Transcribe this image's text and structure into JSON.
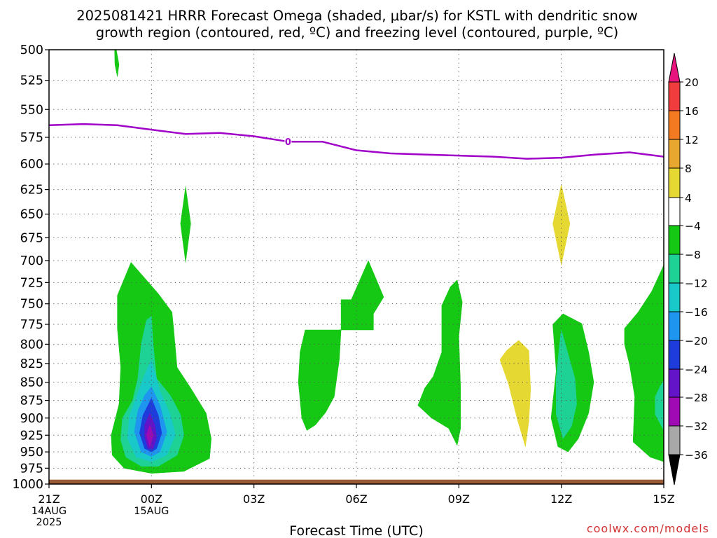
{
  "chart_data": {
    "type": "heatmap",
    "title_lines": [
      "2025081421 HRRR Forecast Omega (shaded, μbar/s) for KSTL with dendritic snow",
      "growth region (contoured, red, ºC) and freezing level (contoured, purple, ºC)"
    ],
    "xlabel": "Forecast Time (UTC)",
    "ylabel": "",
    "watermark": "coolwx.com/models",
    "x_ticks": [
      {
        "h": 0,
        "lines": [
          "21Z",
          "14AUG",
          "2025"
        ]
      },
      {
        "h": 3,
        "lines": [
          "00Z",
          "15AUG"
        ]
      },
      {
        "h": 6,
        "lines": [
          "03Z"
        ]
      },
      {
        "h": 9,
        "lines": [
          "06Z"
        ]
      },
      {
        "h": 12,
        "lines": [
          "09Z"
        ]
      },
      {
        "h": 15,
        "lines": [
          "12Z"
        ]
      },
      {
        "h": 18,
        "lines": [
          "15Z"
        ]
      }
    ],
    "y_ticks": [
      500,
      525,
      550,
      575,
      600,
      625,
      650,
      675,
      700,
      725,
      750,
      775,
      800,
      825,
      850,
      875,
      900,
      925,
      950,
      975,
      1000
    ],
    "x_range_hours": [
      0,
      18
    ],
    "y_range_hpa": [
      500,
      1000
    ],
    "y_scale": "log-pressure",
    "grid": "dotted",
    "colorbar": {
      "labels": [
        "20",
        "16",
        "12",
        "8",
        "4",
        "−4",
        "−8",
        "−12",
        "−16",
        "−20",
        "−24",
        "−28",
        "−32",
        "−36"
      ],
      "bands": [
        {
          "color": "#e8147e",
          "range": [
            20,
            null
          ]
        },
        {
          "color": "#f03c3c",
          "range": [
            16,
            20
          ]
        },
        {
          "color": "#f47a22",
          "range": [
            12,
            16
          ]
        },
        {
          "color": "#e8a830",
          "range": [
            8,
            12
          ]
        },
        {
          "color": "#e6d832",
          "range": [
            4,
            8
          ]
        },
        {
          "color": "#ffffff",
          "range": [
            -4,
            4
          ]
        },
        {
          "color": "#14c814",
          "range": [
            -8,
            -4
          ]
        },
        {
          "color": "#1ed296",
          "range": [
            -12,
            -8
          ]
        },
        {
          "color": "#19c8c8",
          "range": [
            -16,
            -12
          ]
        },
        {
          "color": "#1e96f0",
          "range": [
            -20,
            -16
          ]
        },
        {
          "color": "#1e3cdc",
          "range": [
            -24,
            -20
          ]
        },
        {
          "color": "#6414c8",
          "range": [
            -28,
            -24
          ]
        },
        {
          "color": "#a00ab4",
          "range": [
            -32,
            -28
          ]
        },
        {
          "color": "#a8a8a8",
          "range": [
            -36,
            -32
          ]
        },
        {
          "color": "#000000",
          "range": [
            null,
            -36
          ]
        }
      ]
    },
    "freezing_level": {
      "color": "#a000c8",
      "label": "0",
      "label_at": {
        "h": 7.0,
        "p": 579
      },
      "points": [
        {
          "h": 0,
          "p": 564
        },
        {
          "h": 1,
          "p": 563
        },
        {
          "h": 2,
          "p": 564
        },
        {
          "h": 3,
          "p": 568
        },
        {
          "h": 4,
          "p": 572
        },
        {
          "h": 5,
          "p": 571
        },
        {
          "h": 6,
          "p": 574
        },
        {
          "h": 7,
          "p": 579
        },
        {
          "h": 8,
          "p": 579
        },
        {
          "h": 9,
          "p": 587
        },
        {
          "h": 10,
          "p": 590
        },
        {
          "h": 11,
          "p": 591
        },
        {
          "h": 12,
          "p": 592
        },
        {
          "h": 13,
          "p": 593
        },
        {
          "h": 14,
          "p": 595
        },
        {
          "h": 15,
          "p": 594
        },
        {
          "h": 16,
          "p": 591
        },
        {
          "h": 17,
          "p": 589
        },
        {
          "h": 18,
          "p": 593
        }
      ]
    },
    "terrain": {
      "color": "#9a5a35",
      "top_hpa": 993
    },
    "regions": [
      {
        "name": "green",
        "color": "#14c814",
        "points": [
          [
            2.4,
            702
          ],
          [
            3.2,
            738
          ],
          [
            3.6,
            760
          ],
          [
            3.65,
            780
          ],
          [
            3.75,
            830
          ],
          [
            4.15,
            858
          ],
          [
            4.6,
            893
          ],
          [
            4.75,
            930
          ],
          [
            4.7,
            960
          ],
          [
            3.95,
            980
          ],
          [
            3.0,
            983
          ],
          [
            2.2,
            975
          ],
          [
            1.85,
            955
          ],
          [
            1.82,
            925
          ],
          [
            2.05,
            880
          ],
          [
            2.1,
            830
          ],
          [
            2.0,
            780
          ],
          [
            2.0,
            740
          ]
        ]
      },
      {
        "name": "teal",
        "color": "#1ed296",
        "points": [
          [
            3.0,
            765
          ],
          [
            3.05,
            800
          ],
          [
            3.15,
            845
          ],
          [
            3.55,
            868
          ],
          [
            3.85,
            895
          ],
          [
            3.95,
            925
          ],
          [
            3.75,
            955
          ],
          [
            3.2,
            972
          ],
          [
            2.7,
            972
          ],
          [
            2.25,
            958
          ],
          [
            2.1,
            932
          ],
          [
            2.15,
            900
          ],
          [
            2.45,
            875
          ],
          [
            2.6,
            845
          ],
          [
            2.7,
            800
          ],
          [
            2.85,
            770
          ]
        ]
      },
      {
        "name": "cyan",
        "color": "#19c8c8",
        "points": [
          [
            3.0,
            820
          ],
          [
            3.25,
            862
          ],
          [
            3.55,
            895
          ],
          [
            3.7,
            925
          ],
          [
            3.45,
            955
          ],
          [
            3.0,
            965
          ],
          [
            2.55,
            958
          ],
          [
            2.3,
            930
          ],
          [
            2.35,
            897
          ],
          [
            2.6,
            865
          ],
          [
            2.8,
            840
          ]
        ]
      },
      {
        "name": "light-blue",
        "color": "#1e96f0",
        "points": [
          [
            3.0,
            856
          ],
          [
            3.25,
            882
          ],
          [
            3.45,
            920
          ],
          [
            3.25,
            950
          ],
          [
            3.0,
            957
          ],
          [
            2.7,
            950
          ],
          [
            2.5,
            920
          ],
          [
            2.6,
            890
          ],
          [
            2.8,
            868
          ]
        ]
      },
      {
        "name": "blue",
        "color": "#1e3cdc",
        "points": [
          [
            3.0,
            872
          ],
          [
            3.2,
            896
          ],
          [
            3.3,
            922
          ],
          [
            3.15,
            945
          ],
          [
            3.0,
            950
          ],
          [
            2.8,
            945
          ],
          [
            2.65,
            922
          ],
          [
            2.75,
            896
          ]
        ]
      },
      {
        "name": "purple",
        "color": "#6414c8",
        "points": [
          [
            2.95,
            893
          ],
          [
            3.1,
            910
          ],
          [
            3.15,
            928
          ],
          [
            3.05,
            945
          ],
          [
            2.9,
            945
          ],
          [
            2.8,
            928
          ],
          [
            2.8,
            910
          ]
        ]
      },
      {
        "name": "magenta",
        "color": "#a00ab4",
        "points": [
          [
            2.95,
            910
          ],
          [
            3.05,
            925
          ],
          [
            2.95,
            942
          ],
          [
            2.85,
            925
          ]
        ]
      },
      {
        "name": "green",
        "color": "#14c814",
        "points": [
          [
            1.97,
            500
          ],
          [
            2.05,
            512
          ],
          [
            2.0,
            522
          ],
          [
            1.93,
            512
          ],
          [
            1.92,
            500
          ]
        ]
      },
      {
        "name": "green",
        "color": "#14c814",
        "points": [
          [
            4.0,
            622
          ],
          [
            4.15,
            660
          ],
          [
            4.0,
            702
          ],
          [
            3.85,
            660
          ]
        ]
      },
      {
        "name": "green",
        "color": "#14c814",
        "points": [
          [
            7.5,
            782
          ],
          [
            8.5,
            782
          ],
          [
            8.55,
            782
          ],
          [
            8.5,
            820
          ],
          [
            8.35,
            870
          ],
          [
            8.1,
            892
          ],
          [
            7.8,
            910
          ],
          [
            7.55,
            918
          ],
          [
            7.4,
            900
          ],
          [
            7.3,
            850
          ],
          [
            7.35,
            810
          ]
        ]
      },
      {
        "name": "green",
        "color": "#14c814",
        "points": [
          [
            9.35,
            700
          ],
          [
            9.8,
            742
          ],
          [
            9.5,
            762
          ],
          [
            9.5,
            782
          ],
          [
            9.0,
            782
          ],
          [
            8.5,
            782
          ],
          [
            8.55,
            782
          ],
          [
            8.55,
            745
          ],
          [
            8.85,
            745
          ]
        ]
      },
      {
        "name": "green",
        "color": "#14c814",
        "points": [
          [
            11.95,
            722
          ],
          [
            12.1,
            748
          ],
          [
            12.0,
            790
          ],
          [
            12.05,
            858
          ],
          [
            12.05,
            915
          ],
          [
            11.95,
            940
          ],
          [
            11.7,
            915
          ],
          [
            11.2,
            900
          ],
          [
            10.8,
            882
          ],
          [
            11.0,
            858
          ],
          [
            11.25,
            842
          ],
          [
            11.5,
            810
          ],
          [
            11.5,
            752
          ],
          [
            11.75,
            730
          ]
        ]
      },
      {
        "name": "yellow",
        "color": "#e6d832",
        "points": [
          [
            13.75,
            795
          ],
          [
            14.05,
            808
          ],
          [
            14.1,
            860
          ],
          [
            14.05,
            905
          ],
          [
            13.95,
            942
          ],
          [
            13.7,
            900
          ],
          [
            13.45,
            852
          ],
          [
            13.2,
            820
          ],
          [
            13.4,
            808
          ]
        ]
      },
      {
        "name": "green",
        "color": "#14c814",
        "points": [
          [
            15.05,
            762
          ],
          [
            15.6,
            774
          ],
          [
            15.8,
            810
          ],
          [
            15.95,
            850
          ],
          [
            15.8,
            893
          ],
          [
            15.5,
            930
          ],
          [
            15.2,
            950
          ],
          [
            14.9,
            942
          ],
          [
            14.7,
            900
          ],
          [
            14.85,
            835
          ],
          [
            14.75,
            775
          ]
        ]
      },
      {
        "name": "teal",
        "color": "#1ed296",
        "points": [
          [
            15.0,
            782
          ],
          [
            15.4,
            845
          ],
          [
            15.45,
            880
          ],
          [
            15.3,
            912
          ],
          [
            15.05,
            930
          ],
          [
            14.85,
            895
          ],
          [
            14.85,
            845
          ],
          [
            14.95,
            800
          ]
        ]
      },
      {
        "name": "yellow",
        "color": "#e6d832",
        "points": [
          [
            15.0,
            620
          ],
          [
            15.25,
            660
          ],
          [
            15.0,
            705
          ],
          [
            14.75,
            660
          ]
        ]
      },
      {
        "name": "green",
        "color": "#14c814",
        "points": [
          [
            18.0,
            705
          ],
          [
            18.0,
            965
          ],
          [
            17.6,
            958
          ],
          [
            17.1,
            935
          ],
          [
            17.15,
            870
          ],
          [
            17.0,
            827
          ],
          [
            16.85,
            800
          ],
          [
            16.85,
            780
          ],
          [
            17.25,
            760
          ],
          [
            17.65,
            735
          ]
        ]
      },
      {
        "name": "teal",
        "color": "#1ed296",
        "points": [
          [
            18.0,
            848
          ],
          [
            18.0,
            918
          ],
          [
            17.75,
            895
          ],
          [
            17.75,
            870
          ],
          [
            17.9,
            855
          ]
        ]
      }
    ]
  }
}
